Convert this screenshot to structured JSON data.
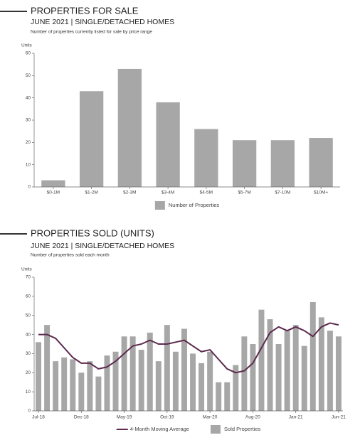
{
  "chart_data": [
    {
      "type": "bar",
      "title": "PROPERTIES FOR SALE",
      "subtitle": "JUNE 2021 | SINGLE/DETACHED HOMES",
      "note": "Number of properties currently listed for sale by price range",
      "y_label": "Units",
      "categories": [
        "$0-1M",
        "$1-2M",
        "$2-3M",
        "$3-4M",
        "$4-5M",
        "$5-7M",
        "$7-10M",
        "$10M+"
      ],
      "series": [
        {
          "name": "Number of Properties",
          "type": "bar",
          "color": "#a7a7a7",
          "values": [
            3,
            43,
            53,
            38,
            26,
            21,
            21,
            22
          ]
        }
      ],
      "ylim": [
        0,
        60
      ],
      "yticks": [
        0,
        10,
        20,
        30,
        40,
        50,
        60
      ],
      "legend": "bottom"
    },
    {
      "type": "bar",
      "title": "PROPERTIES SOLD (UNITS)",
      "subtitle": "JUNE 2021 | SINGLE/DETACHED HOMES",
      "note": "Number of properties sold each month",
      "y_label": "Units",
      "categories": [
        "Jul-18",
        null,
        null,
        null,
        null,
        "Dec-18",
        null,
        null,
        null,
        null,
        "May-19",
        null,
        null,
        null,
        null,
        "Oct-19",
        null,
        null,
        null,
        null,
        "Mar-20",
        null,
        null,
        null,
        null,
        "Aug-20",
        null,
        null,
        null,
        null,
        "Jan-21",
        null,
        null,
        null,
        null,
        "Jun-21"
      ],
      "series": [
        {
          "name": "4-Month Moving Average",
          "type": "line",
          "color": "#5c2a4d",
          "values": [
            40,
            40,
            38,
            33,
            28,
            25,
            25,
            22,
            23,
            26,
            30,
            34,
            35,
            37,
            35,
            35,
            36,
            37,
            34,
            31,
            32,
            27,
            22,
            20,
            21,
            25,
            33,
            41,
            44,
            42,
            44,
            42,
            39,
            44,
            46,
            45
          ]
        },
        {
          "name": "Sold Properties",
          "type": "bar",
          "color": "#a7a7a7",
          "values": [
            36,
            45,
            26,
            28,
            27,
            20,
            26,
            18,
            29,
            31,
            39,
            39,
            32,
            41,
            26,
            45,
            31,
            43,
            30,
            25,
            31,
            15,
            15,
            24,
            39,
            35,
            53,
            48,
            35,
            42,
            45,
            34,
            57,
            49,
            42,
            39
          ]
        }
      ],
      "ylim": [
        0,
        70
      ],
      "yticks": [
        0,
        10,
        20,
        30,
        40,
        50,
        60,
        70
      ],
      "legend": "bottom"
    }
  ]
}
